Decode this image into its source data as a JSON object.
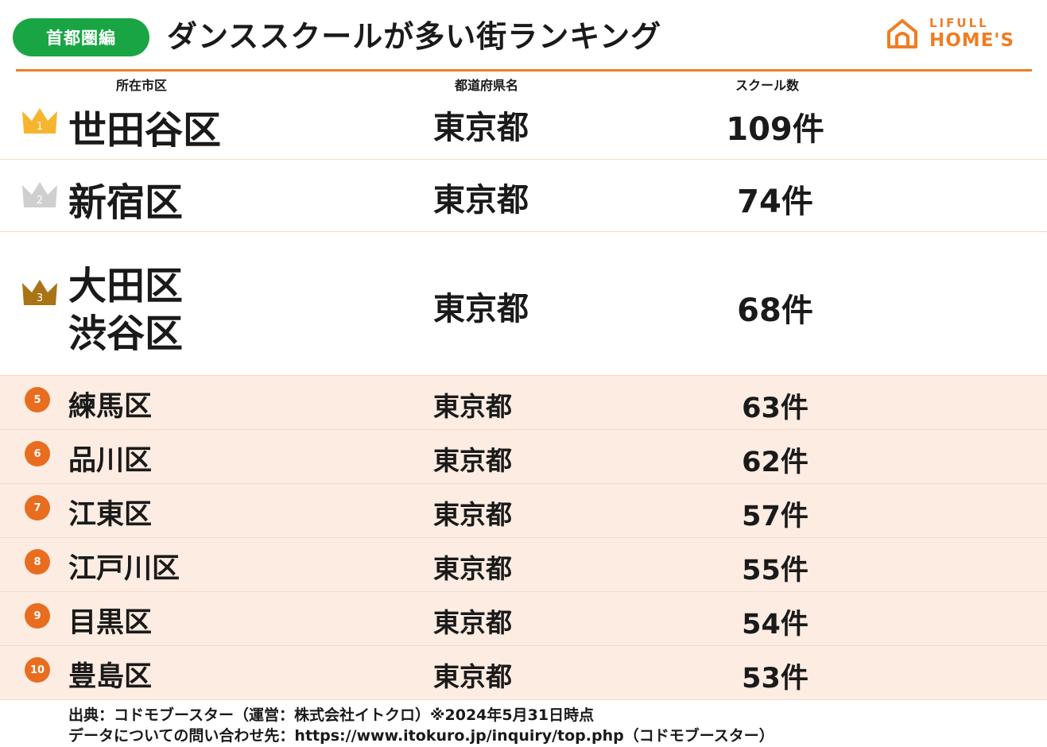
{
  "header": {
    "region_badge": "首都圏編",
    "title": "ダンススクールが多い街ランキング",
    "logo_brand": "LIFULL",
    "logo_product": "HOME'S"
  },
  "columns": {
    "city": "所在市区",
    "prefecture": "都道府県名",
    "count": "スクール数"
  },
  "rankings": [
    {
      "rank": "1",
      "rank_icon": "crown-gold",
      "city": "世田谷区",
      "prefecture": "東京都",
      "count": "109件"
    },
    {
      "rank": "2",
      "rank_icon": "crown-silver",
      "city": "新宿区",
      "prefecture": "東京都",
      "count": "74件"
    },
    {
      "rank": "3",
      "rank_icon": "crown-bronze",
      "city": "大田区",
      "city_2": "渋谷区",
      "prefecture": "東京都",
      "count": "68件"
    },
    {
      "rank": "5",
      "rank_icon": "rank-circle",
      "city": "練馬区",
      "prefecture": "東京都",
      "count": "63件"
    },
    {
      "rank": "6",
      "rank_icon": "rank-circle",
      "city": "品川区",
      "prefecture": "東京都",
      "count": "62件"
    },
    {
      "rank": "7",
      "rank_icon": "rank-circle",
      "city": "江東区",
      "prefecture": "東京都",
      "count": "57件"
    },
    {
      "rank": "8",
      "rank_icon": "rank-circle",
      "city": "江戸川区",
      "prefecture": "東京都",
      "count": "55件"
    },
    {
      "rank": "9",
      "rank_icon": "rank-circle",
      "city": "目黒区",
      "prefecture": "東京都",
      "count": "54件"
    },
    {
      "rank": "10",
      "rank_icon": "rank-circle",
      "city": "豊島区",
      "prefecture": "東京都",
      "count": "53件"
    }
  ],
  "footer": {
    "source": "出典：コドモブースター（運営：株式会社イトクロ）※2024年5月31日時点",
    "contact": "データについての問い合わせ先：https://www.itokuro.jp/inquiry/top.php（コドモブースター）"
  },
  "colors": {
    "accent": "#ef7d23",
    "badge_green": "#1aa544",
    "gold": "#f6b52f",
    "silver": "#cfcfcf",
    "bronze": "#a87417",
    "highlight_row": "#fdece2",
    "rank_circle": "#e86d1f"
  }
}
